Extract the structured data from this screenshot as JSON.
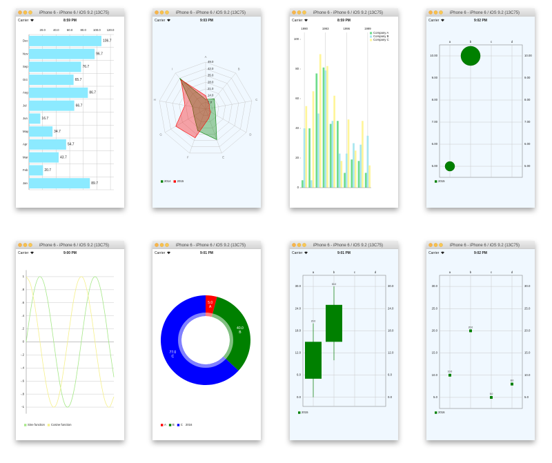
{
  "windows": [
    {
      "title": "iPhone 6 - iPhone 6 / iOS 9.2 (13C75)",
      "carrier": "Carrier",
      "time": "8:59 PM"
    },
    {
      "title": "iPhone 6 - iPhone 6 / iOS 9.2 (13C75)",
      "carrier": "Carrier",
      "time": "9:03 PM"
    },
    {
      "title": "iPhone 6 - iPhone 6 / iOS 9.2 (13C75)",
      "carrier": "Carrier",
      "time": "8:59 PM"
    },
    {
      "title": "iPhone 6 - iPhone 6 / iOS 9.2 (13C75)",
      "carrier": "Carrier",
      "time": "9:02 PM"
    },
    {
      "title": "iPhone 6 - iPhone 6 / iOS 9.2 (13C75)",
      "carrier": "Carrier",
      "time": "9:00 PM"
    },
    {
      "title": "iPhone 6 - iPhone 6 / iOS 9.2 (13C75)",
      "carrier": "Carrier",
      "time": "9:01 PM"
    },
    {
      "title": "iPhone 6 - iPhone 6 / iOS 9.2 (13C75)",
      "carrier": "Carrier",
      "time": "9:01 PM"
    },
    {
      "title": "iPhone 6 - iPhone 6 / iOS 9.2 (13C75)",
      "carrier": "Carrier",
      "time": "9:02 PM"
    }
  ],
  "chart_data": [
    {
      "type": "bar",
      "horizontal": true,
      "categories": [
        "Dec",
        "Nov",
        "Sep",
        "Oct",
        "Aug",
        "Jul",
        "Jun",
        "May",
        "Apr",
        "Mar",
        "Feb",
        "Jan"
      ],
      "values": [
        106.7,
        96.7,
        76.7,
        65.7,
        86.7,
        66.7,
        16.7,
        34.7,
        54.7,
        43.7,
        20.7,
        89.7
      ],
      "color": "#8ceaff",
      "xlim": [
        0,
        125
      ],
      "xticks": [
        {
          "value": 20,
          "label": "20.0"
        },
        {
          "value": 40,
          "label": "40.0"
        },
        {
          "value": 60,
          "label": "60.0"
        },
        {
          "value": 80,
          "label": "80.0"
        },
        {
          "value": 100,
          "label": "100.0"
        },
        {
          "value": 120,
          "label": "120.0"
        }
      ],
      "grid": true
    },
    {
      "type": "radar",
      "background": "#f0f8ff",
      "axes": [
        "A",
        "B",
        "C",
        "D",
        "E",
        "F",
        "G",
        "H",
        "I"
      ],
      "rlim": [
        0,
        49
      ],
      "rticks": [
        {
          "value": 7,
          "label": "7.0"
        },
        {
          "value": 14,
          "label": "14.0"
        },
        {
          "value": 21,
          "label": "21.0"
        },
        {
          "value": 28,
          "label": "28.0"
        },
        {
          "value": 35,
          "label": "35.0"
        },
        {
          "value": 42,
          "label": "42.0"
        },
        {
          "value": 49,
          "label": "49.0"
        }
      ],
      "series": [
        {
          "name": "2014",
          "color": "#008000",
          "values": [
            10,
            14,
            10,
            12,
            34,
            24,
            14,
            14,
            42
          ]
        },
        {
          "name": "2015",
          "color": "#ff0000",
          "values": [
            14,
            6,
            4,
            6,
            10,
            32,
            36,
            22,
            40
          ]
        }
      ],
      "legend": "bottom-left"
    },
    {
      "type": "groupedbar",
      "categories": [
        "1990",
        null,
        null,
        "1993",
        null,
        null,
        "1996",
        null,
        null,
        "1999"
      ],
      "series": [
        {
          "name": "Company A",
          "color": "#6fdc8c",
          "values": [
            5,
            40,
            77,
            81,
            43,
            45,
            10,
            19,
            18,
            10
          ]
        },
        {
          "name": "Company B",
          "color": "#a8e6f0",
          "values": [
            40,
            5,
            50,
            79,
            45,
            23,
            23,
            30,
            29,
            35
          ]
        },
        {
          "name": "Company C",
          "color": "#fff59a",
          "values": [
            55,
            65,
            90,
            82,
            62,
            18,
            46,
            25,
            45,
            15
          ]
        }
      ],
      "ylim": [
        0,
        100
      ],
      "yticks": [
        0,
        20,
        40,
        60,
        80,
        100
      ],
      "legend": "top-right"
    },
    {
      "type": "bubble",
      "background": "#f0f8ff",
      "categories": [
        "a",
        "b",
        "c",
        "d"
      ],
      "series": [
        {
          "name": "2015",
          "color": "#008000",
          "values": [
            5,
            10,
            null,
            null
          ],
          "sizes": [
            1,
            4,
            null,
            null
          ]
        }
      ],
      "ylim": [
        4.5,
        10.5
      ],
      "yticks": [
        {
          "value": 5,
          "label": "5.00"
        },
        {
          "value": 6,
          "label": "6.00"
        },
        {
          "value": 7,
          "label": "7.00"
        },
        {
          "value": 8,
          "label": "8.00"
        },
        {
          "value": 9,
          "label": "9.00"
        },
        {
          "value": 10,
          "label": "10.00"
        }
      ],
      "grid": true,
      "legend": "bottom-left"
    },
    {
      "type": "line",
      "x": [
        0,
        0.5,
        1,
        1.5,
        2,
        2.5,
        3,
        3.5,
        4,
        4.5,
        5,
        5.5,
        6,
        6.5,
        7,
        7.5,
        8,
        8.5,
        9,
        9.5,
        10
      ],
      "series": [
        {
          "name": "Sine function",
          "color": "#a5e887",
          "values": [
            0,
            0.48,
            0.84,
            1.0,
            0.91,
            0.6,
            0.14,
            -0.35,
            -0.76,
            -0.98,
            -0.96,
            -0.71,
            -0.28,
            0.22,
            0.66,
            0.94,
            0.99,
            0.8,
            0.41,
            -0.08,
            -0.54
          ]
        },
        {
          "name": "Cosine function",
          "color": "#f5f08a",
          "values": [
            1,
            0.88,
            0.54,
            0.07,
            -0.42,
            -0.8,
            -0.99,
            -0.94,
            -0.65,
            -0.21,
            0.28,
            0.71,
            0.96,
            0.98,
            0.75,
            0.35,
            -0.15,
            -0.6,
            -0.91,
            -1.0,
            -0.84
          ]
        }
      ],
      "xlim": [
        0,
        10
      ],
      "ylim": [
        -1.1,
        1.1
      ],
      "yticks": [
        1,
        {
          "value": 0.8,
          "label": ".8"
        },
        {
          "value": 0.6,
          "label": ".6"
        },
        {
          "value": 0.4,
          "label": ".4"
        },
        {
          "value": 0.2,
          "label": ".2"
        },
        0,
        {
          "value": -0.2,
          "label": "-.2"
        },
        {
          "value": -0.4,
          "label": "-.4"
        },
        {
          "value": -0.6,
          "label": "-.6"
        },
        {
          "value": -0.8,
          "label": "-.8"
        },
        -1
      ],
      "grid": true,
      "legend": "bottom-left"
    },
    {
      "type": "doughnut",
      "name": "2016",
      "categories": [
        "A",
        "B",
        "C"
      ],
      "values": [
        5,
        40,
        77
      ],
      "value_labels": [
        "5.0",
        "40.0",
        "77.0"
      ],
      "colors": [
        "#ff0000",
        "#008000",
        "#0000ff"
      ],
      "legend": "bottom-left"
    },
    {
      "type": "candlestick",
      "background": "#f0f8ff",
      "categories": [
        "a",
        "b",
        "c",
        "d"
      ],
      "series": [
        {
          "name": "2015",
          "color": "#008000",
          "open": [
            15,
            25,
            null,
            null
          ],
          "high": [
            20,
            30,
            null,
            null
          ],
          "low": [
            0,
            10,
            null,
            null
          ],
          "close": [
            5,
            15,
            null,
            null
          ],
          "high_labels": [
            "20.0",
            "30.0",
            null,
            null
          ]
        }
      ],
      "ylim": [
        -2.5,
        33
      ],
      "yticks": [
        {
          "value": 0,
          "label": "0.0"
        },
        {
          "value": 6,
          "label": "6.0"
        },
        {
          "value": 12,
          "label": "12.0"
        },
        {
          "value": 18,
          "label": "18.0"
        },
        {
          "value": 24,
          "label": "24.0"
        },
        {
          "value": 30,
          "label": "30.0"
        }
      ],
      "grid": true,
      "legend": "bottom-left"
    },
    {
      "type": "scatter",
      "background": "#f0f8ff",
      "categories": [
        "a",
        "b",
        "c",
        "d"
      ],
      "series": [
        {
          "name": "2016",
          "color": "#008000",
          "values": [
            10,
            20,
            5,
            8
          ],
          "value_labels": [
            "10.0",
            "20.0",
            "5.0",
            "8.0"
          ]
        }
      ],
      "ylim": [
        2.5,
        32.5
      ],
      "yticks": [
        {
          "value": 5,
          "label": "5.0"
        },
        {
          "value": 10,
          "label": "10.0"
        },
        {
          "value": 15,
          "label": "15.0"
        },
        {
          "value": 20,
          "label": "20.0"
        },
        {
          "value": 25,
          "label": "25.0"
        },
        {
          "value": 30,
          "label": "30.0"
        }
      ],
      "grid": true,
      "legend": "bottom-left"
    }
  ]
}
